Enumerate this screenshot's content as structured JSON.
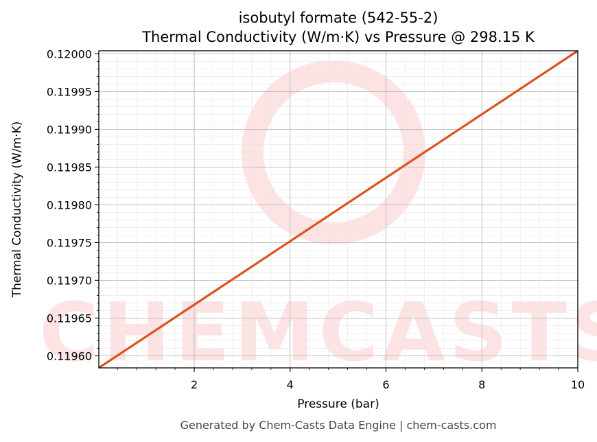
{
  "chart_data": {
    "type": "line",
    "title_line1": "isobutyl formate (542-55-2)",
    "title_line2": "Thermal Conductivity (W/m·K) vs Pressure @ 298.15 K",
    "xlabel": "Pressure (bar)",
    "ylabel": "Thermal Conductivity (W/m·K)",
    "xlim": [
      0.01,
      10
    ],
    "ylim": [
      0.119584,
      0.120004
    ],
    "x_ticks": [
      2,
      4,
      6,
      8,
      10
    ],
    "y_ticks": [
      0.1196,
      0.11965,
      0.1197,
      0.11975,
      0.1198,
      0.11985,
      0.1199,
      0.11995,
      0.12
    ],
    "x_tick_labels": [
      "2",
      "4",
      "6",
      "8",
      "10"
    ],
    "y_tick_labels": [
      "0.11960",
      "0.11965",
      "0.11970",
      "0.11975",
      "0.11980",
      "0.11985",
      "0.11990",
      "0.11995",
      "0.12000"
    ],
    "grid": true,
    "series": [
      {
        "color": "#d9541f",
        "x": [
          0.01,
          10
        ],
        "y": [
          0.119584,
          0.120004
        ]
      }
    ]
  },
  "footer": "Generated by Chem-Casts Data Engine | chem-casts.com",
  "watermark": "CHEMCASTS",
  "colors": {
    "line": "#d9541f",
    "watermark": "#fde3e3",
    "grid_major": "#b0b0b0",
    "grid_minor": "#e6e6e6"
  }
}
